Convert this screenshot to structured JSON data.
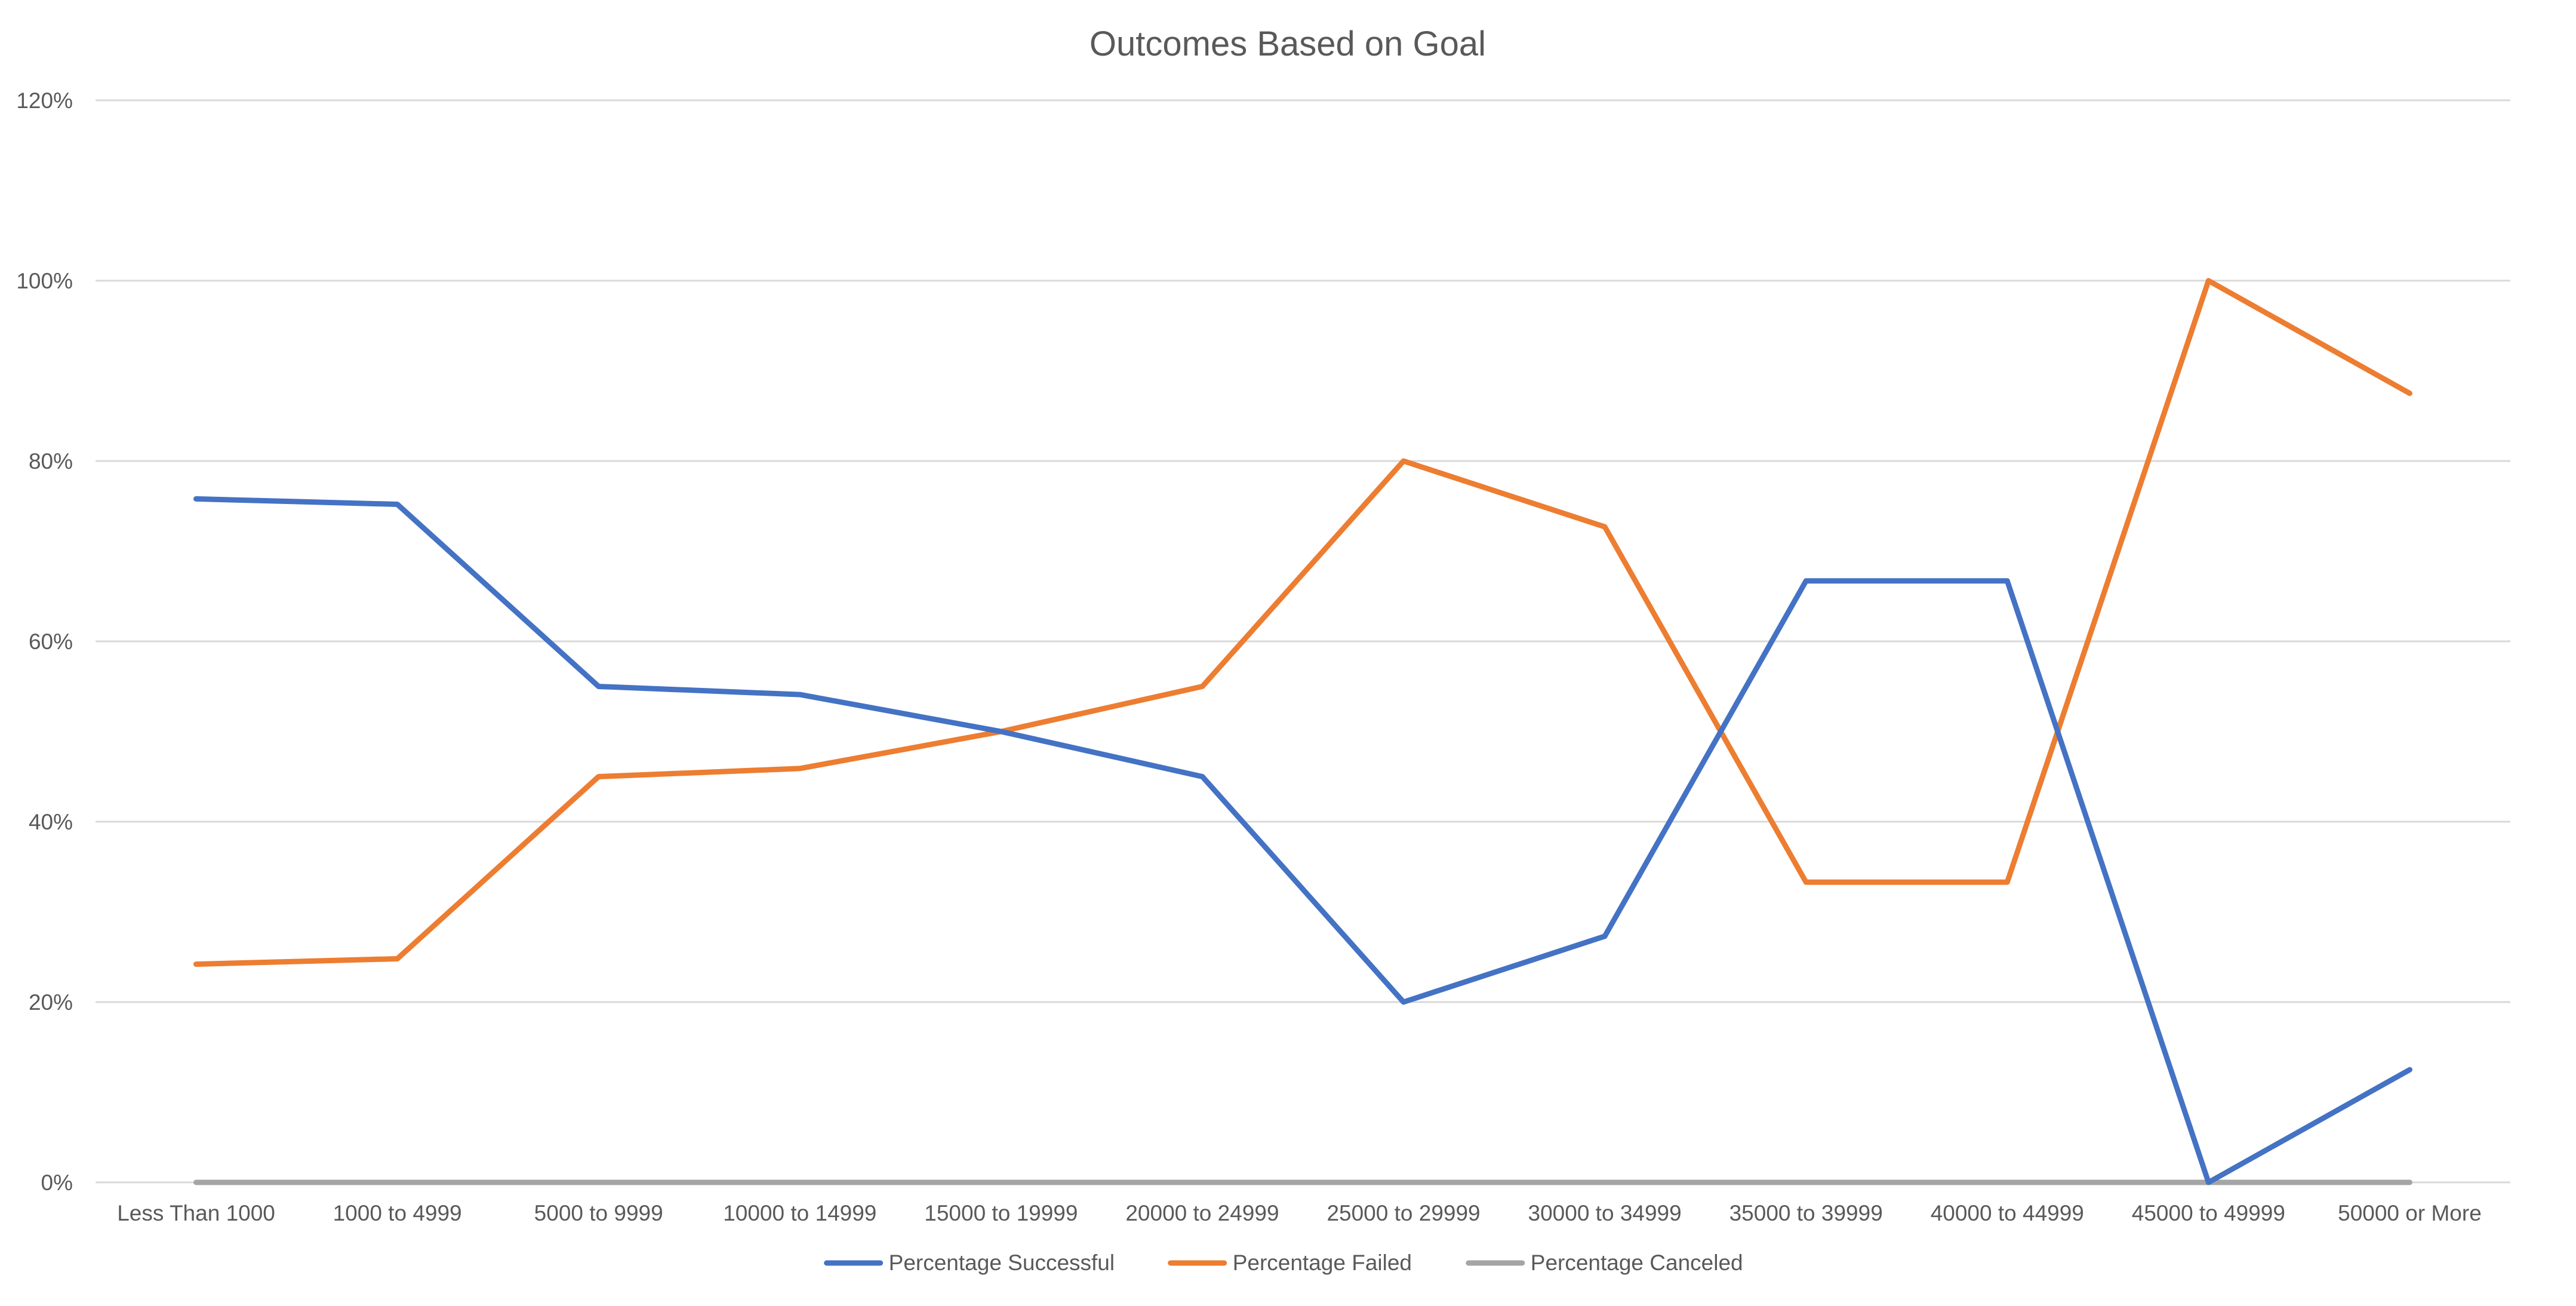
{
  "chart_data": {
    "type": "line",
    "title": "Outcomes Based on Goal",
    "xlabel": "",
    "ylabel": "",
    "categories": [
      "Less Than 1000",
      "1000 to 4999",
      "5000 to 9999",
      "10000 to 14999",
      "15000 to 19999",
      "20000 to 24999",
      "25000 to 29999",
      "30000 to 34999",
      "35000 to 39999",
      "40000 to 44999",
      "45000 to 49999",
      "50000 or More"
    ],
    "ylim": [
      0,
      1.2
    ],
    "yticks": [
      {
        "value": 0,
        "label": "0%"
      },
      {
        "value": 0.2,
        "label": "20%"
      },
      {
        "value": 0.4,
        "label": "40%"
      },
      {
        "value": 0.6,
        "label": "60%"
      },
      {
        "value": 0.8,
        "label": "80%"
      },
      {
        "value": 1.0,
        "label": "100%"
      },
      {
        "value": 1.2,
        "label": "120%"
      }
    ],
    "grid": true,
    "legend_position": "bottom",
    "series": [
      {
        "name": "Percentage Successful",
        "color": "#4472C4",
        "values": [
          0.758,
          0.752,
          0.55,
          0.541,
          0.5,
          0.45,
          0.2,
          0.273,
          0.667,
          0.667,
          0.0,
          0.125
        ]
      },
      {
        "name": "Percentage Failed",
        "color": "#ED7D31",
        "values": [
          0.242,
          0.248,
          0.45,
          0.459,
          0.5,
          0.55,
          0.8,
          0.727,
          0.333,
          0.333,
          1.0,
          0.875
        ]
      },
      {
        "name": "Percentage Canceled",
        "color": "#A5A5A5",
        "values": [
          0,
          0,
          0,
          0,
          0,
          0,
          0,
          0,
          0,
          0,
          0,
          0
        ]
      }
    ],
    "colors": {
      "gridline": "#D9D9D9",
      "axis_text": "#595959",
      "title_text": "#595959"
    }
  }
}
